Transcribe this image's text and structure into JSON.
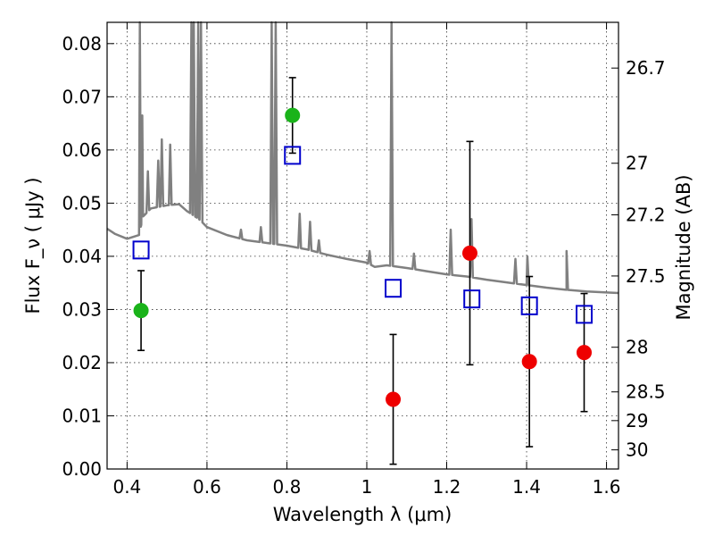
{
  "chart_data": {
    "type": "scatter",
    "xlabel": "Wavelength  λ (μm)",
    "ylabel": "Flux  F_ν  ( μJy )",
    "ylabel_right": "Magnitude (AB)",
    "xlim": [
      0.35,
      1.63
    ],
    "ylim": [
      0.0,
      0.084
    ],
    "grid": true,
    "x_ticks": [
      0.4,
      0.6,
      0.8,
      1.0,
      1.2,
      1.4,
      1.6
    ],
    "x_tick_labels": [
      "0.4",
      "0.6",
      "0.8",
      "1",
      "1.2",
      "1.4",
      "1.6"
    ],
    "y_ticks": [
      0.0,
      0.01,
      0.02,
      0.03,
      0.04,
      0.05,
      0.06,
      0.07,
      0.08
    ],
    "y_tick_labels": [
      "0.00",
      "0.01",
      "0.02",
      "0.03",
      "0.04",
      "0.05",
      "0.06",
      "0.07",
      "0.08"
    ],
    "right_ticks": [
      {
        "label": "26.7",
        "flux": 0.0754
      },
      {
        "label": "27",
        "flux": 0.0575
      },
      {
        "label": "27.2",
        "flux": 0.0478
      },
      {
        "label": "27.5",
        "flux": 0.0363
      },
      {
        "label": "28",
        "flux": 0.0229
      },
      {
        "label": "28.5",
        "flux": 0.0145
      },
      {
        "label": "29",
        "flux": 0.0091
      },
      {
        "label": "30",
        "flux": 0.0036
      }
    ],
    "series": [
      {
        "marker": "circle",
        "color": "#1ab31a",
        "points": [
          {
            "x": 0.435,
            "y": 0.0298,
            "err": 0.0075
          },
          {
            "x": 0.814,
            "y": 0.0665,
            "err": 0.0071
          }
        ]
      },
      {
        "marker": "circle",
        "color": "#ee0000",
        "points": [
          {
            "x": 1.066,
            "y": 0.0131,
            "err": 0.0122
          },
          {
            "x": 1.258,
            "y": 0.0406,
            "err": 0.021
          },
          {
            "x": 1.407,
            "y": 0.0202,
            "err": 0.016
          },
          {
            "x": 1.544,
            "y": 0.0219,
            "err": 0.0111
          }
        ]
      },
      {
        "marker": "open-square",
        "color": "#0000cc",
        "points": [
          {
            "x": 0.435,
            "y": 0.0411
          },
          {
            "x": 0.814,
            "y": 0.0589
          },
          {
            "x": 1.066,
            "y": 0.0339
          },
          {
            "x": 1.263,
            "y": 0.0319
          },
          {
            "x": 1.407,
            "y": 0.0306
          },
          {
            "x": 1.544,
            "y": 0.029
          }
        ]
      }
    ],
    "spectrum": {
      "color": "#808080",
      "continuum": [
        [
          0.35,
          0.0452
        ],
        [
          0.37,
          0.0442
        ],
        [
          0.4,
          0.0433
        ],
        [
          0.43,
          0.044
        ],
        [
          0.44,
          0.0475
        ],
        [
          0.46,
          0.049
        ],
        [
          0.5,
          0.0496
        ],
        [
          0.53,
          0.0498
        ],
        [
          0.55,
          0.0485
        ],
        [
          0.58,
          0.047
        ],
        [
          0.6,
          0.0455
        ],
        [
          0.65,
          0.044
        ],
        [
          0.7,
          0.043
        ],
        [
          0.75,
          0.0425
        ],
        [
          0.8,
          0.042
        ],
        [
          0.85,
          0.0413
        ],
        [
          0.9,
          0.0403
        ],
        [
          0.95,
          0.0395
        ],
        [
          1.0,
          0.0388
        ],
        [
          1.02,
          0.038
        ],
        [
          1.05,
          0.0383
        ],
        [
          1.1,
          0.0378
        ],
        [
          1.15,
          0.0372
        ],
        [
          1.2,
          0.0366
        ],
        [
          1.25,
          0.0362
        ],
        [
          1.3,
          0.0356
        ],
        [
          1.35,
          0.0351
        ],
        [
          1.4,
          0.0346
        ],
        [
          1.45,
          0.0341
        ],
        [
          1.5,
          0.0337
        ],
        [
          1.55,
          0.0334
        ],
        [
          1.6,
          0.0332
        ],
        [
          1.63,
          0.0331
        ]
      ],
      "lines": [
        [
          0.432,
          0.087
        ],
        [
          0.438,
          0.0665
        ],
        [
          0.452,
          0.056
        ],
        [
          0.478,
          0.058
        ],
        [
          0.487,
          0.062
        ],
        [
          0.508,
          0.061
        ],
        [
          0.561,
          0.088
        ],
        [
          0.567,
          0.088
        ],
        [
          0.578,
          0.088
        ],
        [
          0.585,
          0.088
        ],
        [
          0.685,
          0.045
        ],
        [
          0.735,
          0.0455
        ],
        [
          0.762,
          0.088
        ],
        [
          0.772,
          0.088
        ],
        [
          0.832,
          0.048
        ],
        [
          0.858,
          0.0465
        ],
        [
          0.88,
          0.043
        ],
        [
          1.007,
          0.041
        ],
        [
          1.062,
          0.088
        ],
        [
          1.118,
          0.0405
        ],
        [
          1.21,
          0.045
        ],
        [
          1.262,
          0.047
        ],
        [
          1.372,
          0.0395
        ],
        [
          1.402,
          0.04
        ],
        [
          1.5,
          0.041
        ]
      ]
    }
  }
}
